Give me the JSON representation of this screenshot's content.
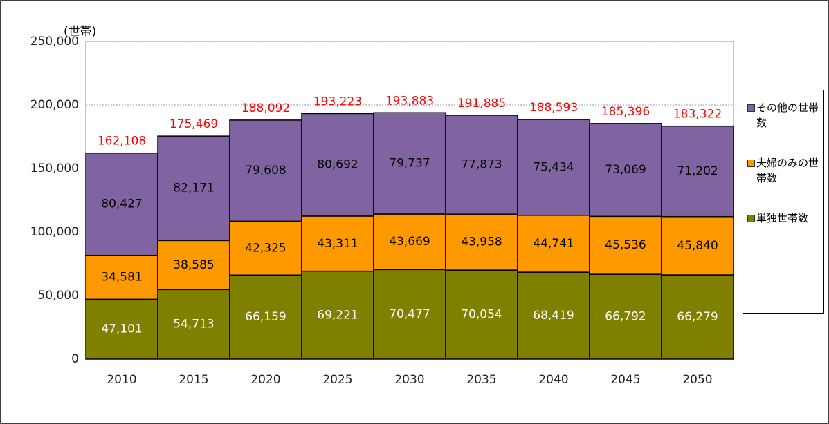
{
  "chart_data": {
    "type": "stacked_bar",
    "y_axis_label": "(世帯)",
    "categories": [
      "2010",
      "2015",
      "2020",
      "2025",
      "2030",
      "2035",
      "2040",
      "2045",
      "2050"
    ],
    "series": [
      {
        "name": "単独世帯数",
        "color": "#808000",
        "label_color": "#ffffff",
        "values": [
          47101,
          54713,
          66159,
          69221,
          70477,
          70054,
          68419,
          66792,
          66279
        ],
        "value_labels": [
          "47,101",
          "54,713",
          "66,159",
          "69,221",
          "70,477",
          "70,054",
          "68,419",
          "66,792",
          "66,279"
        ]
      },
      {
        "name": "夫婦のみの世帯数",
        "color": "#ff9900",
        "label_color": "#000000",
        "values": [
          34581,
          38585,
          42325,
          43311,
          43669,
          43958,
          44741,
          45536,
          45840
        ],
        "value_labels": [
          "34,581",
          "38,585",
          "42,325",
          "43,311",
          "43,669",
          "43,958",
          "44,741",
          "45,536",
          "45,840"
        ]
      },
      {
        "name": "その他の世帯数",
        "color": "#8064a2",
        "label_color": "#000000",
        "values": [
          80427,
          82171,
          79608,
          80692,
          79737,
          77873,
          75434,
          73069,
          71202
        ],
        "value_labels": [
          "80,427",
          "82,171",
          "79,608",
          "80,692",
          "79,737",
          "77,873",
          "75,434",
          "73,069",
          "71,202"
        ]
      }
    ],
    "totals": [
      162108,
      175469,
      188092,
      193223,
      193883,
      191885,
      188593,
      185396,
      183322
    ],
    "totals_labels": [
      "162,108",
      "175,469",
      "188,092",
      "193,223",
      "193,883",
      "191,885",
      "188,593",
      "185,396",
      "183,322"
    ],
    "totals_color": "#ff0000",
    "ylim": [
      0,
      250000
    ],
    "yticks": [
      0,
      {
        "value": 50000,
        "label": "50,000"
      },
      {
        "value": 100000,
        "label": "100,000"
      },
      {
        "value": 150000,
        "label": "150,000"
      },
      {
        "value": 200000,
        "label": "200,000"
      },
      {
        "value": 250000,
        "label": "250,000"
      }
    ],
    "grid": true
  }
}
